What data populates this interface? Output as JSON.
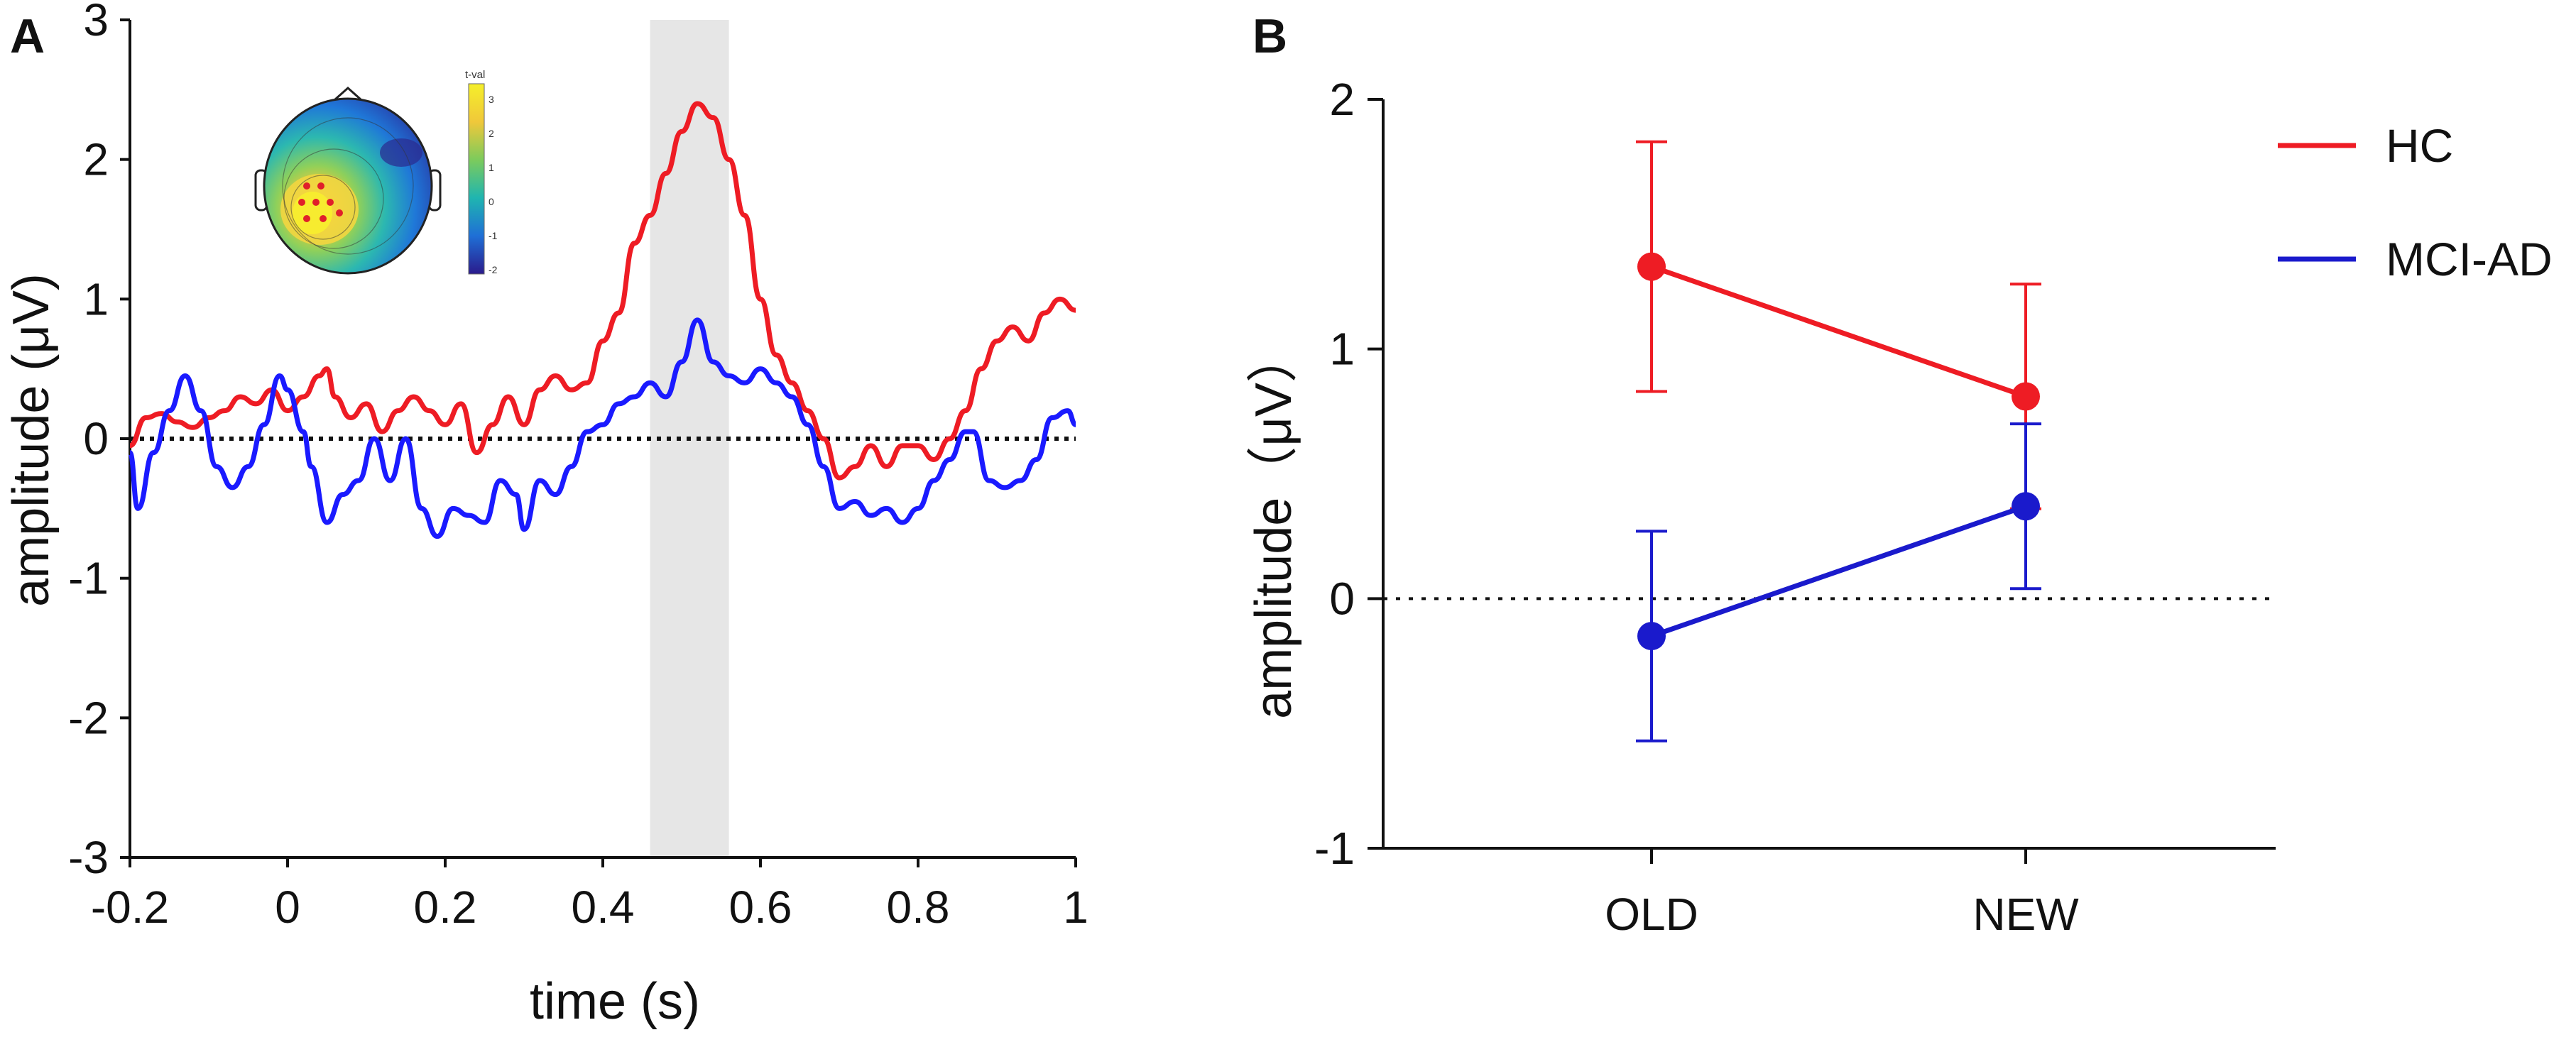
{
  "chart_data": [
    {
      "panel": "A",
      "type": "line",
      "xlabel": "time (s)",
      "ylabel": "amplitude (μV)",
      "xlim": [
        -0.2,
        1.0
      ],
      "ylim": [
        -3,
        3
      ],
      "x_ticks": [
        "-0.2",
        "0",
        "0.2",
        "0.4",
        "0.6",
        "0.8",
        "1"
      ],
      "y_ticks": [
        "3",
        "2",
        "1",
        "0",
        "-1",
        "-2",
        "-3"
      ],
      "zero_line": 0,
      "highlight_window": [
        0.46,
        0.56
      ],
      "series": [
        {
          "name": "HC",
          "color": "#ee1c24",
          "points": [
            [
              -0.2,
              -0.05
            ],
            [
              -0.18,
              0.15
            ],
            [
              -0.16,
              0.18
            ],
            [
              -0.14,
              0.12
            ],
            [
              -0.12,
              0.08
            ],
            [
              -0.1,
              0.15
            ],
            [
              -0.08,
              0.2
            ],
            [
              -0.06,
              0.3
            ],
            [
              -0.04,
              0.25
            ],
            [
              -0.02,
              0.35
            ],
            [
              0.0,
              0.2
            ],
            [
              0.02,
              0.3
            ],
            [
              0.04,
              0.45
            ],
            [
              0.05,
              0.5
            ],
            [
              0.06,
              0.3
            ],
            [
              0.08,
              0.15
            ],
            [
              0.1,
              0.25
            ],
            [
              0.12,
              0.05
            ],
            [
              0.14,
              0.2
            ],
            [
              0.16,
              0.3
            ],
            [
              0.18,
              0.2
            ],
            [
              0.2,
              0.1
            ],
            [
              0.22,
              0.25
            ],
            [
              0.24,
              -0.1
            ],
            [
              0.26,
              0.1
            ],
            [
              0.28,
              0.3
            ],
            [
              0.3,
              0.1
            ],
            [
              0.32,
              0.35
            ],
            [
              0.34,
              0.45
            ],
            [
              0.36,
              0.35
            ],
            [
              0.38,
              0.4
            ],
            [
              0.4,
              0.7
            ],
            [
              0.42,
              0.9
            ],
            [
              0.44,
              1.4
            ],
            [
              0.46,
              1.6
            ],
            [
              0.48,
              1.9
            ],
            [
              0.5,
              2.2
            ],
            [
              0.52,
              2.4
            ],
            [
              0.54,
              2.3
            ],
            [
              0.56,
              2.0
            ],
            [
              0.58,
              1.6
            ],
            [
              0.6,
              1.0
            ],
            [
              0.62,
              0.6
            ],
            [
              0.64,
              0.4
            ],
            [
              0.66,
              0.2
            ],
            [
              0.68,
              0.0
            ],
            [
              0.7,
              -0.28
            ],
            [
              0.72,
              -0.2
            ],
            [
              0.74,
              -0.05
            ],
            [
              0.76,
              -0.2
            ],
            [
              0.78,
              -0.05
            ],
            [
              0.8,
              -0.05
            ],
            [
              0.82,
              -0.15
            ],
            [
              0.84,
              0.0
            ],
            [
              0.86,
              0.2
            ],
            [
              0.88,
              0.5
            ],
            [
              0.9,
              0.7
            ],
            [
              0.92,
              0.8
            ],
            [
              0.94,
              0.7
            ],
            [
              0.96,
              0.9
            ],
            [
              0.98,
              1.0
            ],
            [
              1.0,
              0.92
            ]
          ]
        },
        {
          "name": "MCI-AD",
          "color": "#1a1aff",
          "points": [
            [
              -0.2,
              -0.1
            ],
            [
              -0.19,
              -0.5
            ],
            [
              -0.17,
              -0.1
            ],
            [
              -0.15,
              0.2
            ],
            [
              -0.13,
              0.45
            ],
            [
              -0.11,
              0.2
            ],
            [
              -0.09,
              -0.2
            ],
            [
              -0.07,
              -0.35
            ],
            [
              -0.05,
              -0.2
            ],
            [
              -0.03,
              0.1
            ],
            [
              -0.01,
              0.45
            ],
            [
              0.0,
              0.35
            ],
            [
              0.02,
              0.05
            ],
            [
              0.03,
              -0.2
            ],
            [
              0.05,
              -0.6
            ],
            [
              0.07,
              -0.4
            ],
            [
              0.09,
              -0.3
            ],
            [
              0.11,
              0.0
            ],
            [
              0.13,
              -0.3
            ],
            [
              0.15,
              0.0
            ],
            [
              0.17,
              -0.5
            ],
            [
              0.19,
              -0.7
            ],
            [
              0.21,
              -0.5
            ],
            [
              0.23,
              -0.55
            ],
            [
              0.25,
              -0.6
            ],
            [
              0.27,
              -0.3
            ],
            [
              0.29,
              -0.4
            ],
            [
              0.3,
              -0.65
            ],
            [
              0.32,
              -0.3
            ],
            [
              0.34,
              -0.4
            ],
            [
              0.36,
              -0.2
            ],
            [
              0.38,
              0.05
            ],
            [
              0.4,
              0.1
            ],
            [
              0.42,
              0.25
            ],
            [
              0.44,
              0.3
            ],
            [
              0.46,
              0.4
            ],
            [
              0.48,
              0.3
            ],
            [
              0.5,
              0.55
            ],
            [
              0.52,
              0.85
            ],
            [
              0.54,
              0.55
            ],
            [
              0.56,
              0.45
            ],
            [
              0.58,
              0.4
            ],
            [
              0.6,
              0.5
            ],
            [
              0.62,
              0.4
            ],
            [
              0.64,
              0.3
            ],
            [
              0.66,
              0.1
            ],
            [
              0.68,
              -0.2
            ],
            [
              0.7,
              -0.5
            ],
            [
              0.72,
              -0.45
            ],
            [
              0.74,
              -0.55
            ],
            [
              0.76,
              -0.5
            ],
            [
              0.78,
              -0.6
            ],
            [
              0.8,
              -0.5
            ],
            [
              0.82,
              -0.3
            ],
            [
              0.84,
              -0.15
            ],
            [
              0.86,
              0.05
            ],
            [
              0.87,
              0.05
            ],
            [
              0.89,
              -0.3
            ],
            [
              0.91,
              -0.35
            ],
            [
              0.93,
              -0.3
            ],
            [
              0.95,
              -0.15
            ],
            [
              0.97,
              0.15
            ],
            [
              0.99,
              0.2
            ],
            [
              1.0,
              0.1
            ]
          ]
        }
      ],
      "inset_topomap": {
        "colorbar_title": "t-val",
        "colorbar_ticks": [
          "3",
          "2",
          "1",
          "0",
          "-1",
          "-2"
        ],
        "colormap": [
          "#2a1b8c",
          "#1f6fd6",
          "#1fb5b0",
          "#7ccb5c",
          "#f0d43a",
          "#f5ef2a"
        ]
      }
    },
    {
      "panel": "B",
      "type": "line",
      "ylabel": "amplitude（μV）",
      "categories": [
        "OLD",
        "NEW"
      ],
      "ylim": [
        -1,
        2
      ],
      "y_ticks": [
        "2",
        "1",
        "0",
        "-1"
      ],
      "zero_line": 0,
      "legend_position": "top-right",
      "series": [
        {
          "name": "HC",
          "color": "#ee1c24",
          "values": [
            1.33,
            0.81
          ],
          "error": [
            0.5,
            0.45
          ]
        },
        {
          "name": "MCI-AD",
          "color": "#1a1acc",
          "values": [
            -0.15,
            0.37
          ],
          "error": [
            0.42,
            0.33
          ]
        }
      ]
    }
  ]
}
